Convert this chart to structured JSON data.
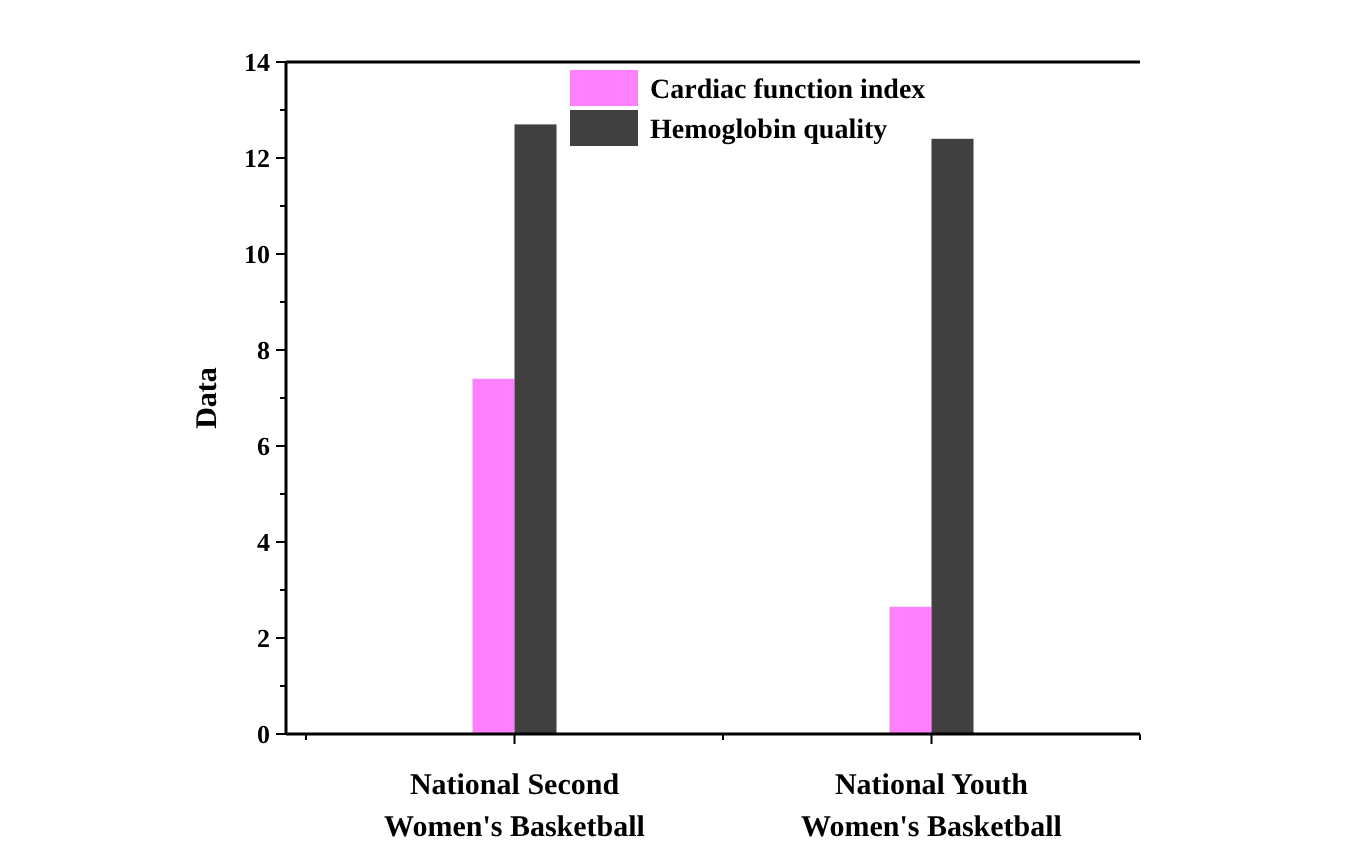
{
  "chart_data": {
    "type": "bar",
    "ylabel": "Data",
    "categories": [
      "National Second\nWomen's Basketball",
      "National Youth\nWomen's Basketball"
    ],
    "series": [
      {
        "name": "Cardiac function index",
        "color": "#ff80ff",
        "values": [
          7.4,
          2.65
        ]
      },
      {
        "name": "Hemoglobin quality",
        "color": "#404040",
        "values": [
          12.7,
          12.4
        ]
      }
    ],
    "ylim": [
      0,
      14
    ],
    "yticks": [
      0,
      2,
      4,
      6,
      8,
      10,
      12,
      14
    ],
    "legend": "top",
    "grid": false
  }
}
